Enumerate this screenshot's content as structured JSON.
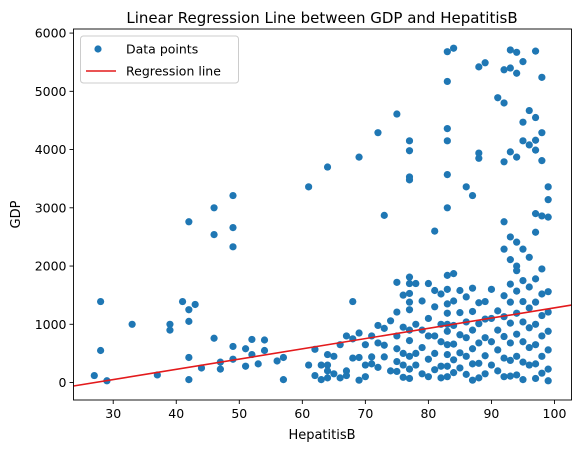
{
  "chart_data": {
    "type": "scatter",
    "title": "Linear Regression Line between GDP and HepatitisB",
    "xlabel": "HepatitisB",
    "ylabel": "GDP",
    "xlim": [
      23.7,
      102.7
    ],
    "ylim": [
      -300,
      6070
    ],
    "xticks": [
      30,
      40,
      50,
      60,
      70,
      80,
      90,
      100
    ],
    "yticks": [
      0,
      1000,
      2000,
      3000,
      4000,
      5000,
      6000
    ],
    "legend_position": "upper-left",
    "grid": false,
    "series": [
      {
        "name": "Data points",
        "kind": "scatter",
        "color": "#1f77b4",
        "points": [
          [
            27,
            120
          ],
          [
            28,
            1390
          ],
          [
            28,
            550
          ],
          [
            29,
            30
          ],
          [
            33,
            1000
          ],
          [
            37,
            130
          ],
          [
            39,
            1000
          ],
          [
            39,
            900
          ],
          [
            41,
            1390
          ],
          [
            42,
            2760
          ],
          [
            42,
            1250
          ],
          [
            42,
            1050
          ],
          [
            42,
            430
          ],
          [
            42,
            50
          ],
          [
            43,
            1340
          ],
          [
            44,
            250
          ],
          [
            46,
            3000
          ],
          [
            46,
            2540
          ],
          [
            46,
            760
          ],
          [
            47,
            350
          ],
          [
            47,
            230
          ],
          [
            49,
            3210
          ],
          [
            49,
            2660
          ],
          [
            49,
            2330
          ],
          [
            49,
            620
          ],
          [
            49,
            400
          ],
          [
            51,
            580
          ],
          [
            51,
            280
          ],
          [
            52,
            740
          ],
          [
            52,
            480
          ],
          [
            53,
            320
          ],
          [
            54,
            730
          ],
          [
            54,
            550
          ],
          [
            56,
            370
          ],
          [
            57,
            430
          ],
          [
            57,
            50
          ],
          [
            61,
            3360
          ],
          [
            61,
            300
          ],
          [
            62,
            570
          ],
          [
            62,
            120
          ],
          [
            63,
            300
          ],
          [
            63,
            50
          ],
          [
            64,
            3700
          ],
          [
            64,
            480
          ],
          [
            64,
            300
          ],
          [
            64,
            200
          ],
          [
            64,
            80
          ],
          [
            65,
            450
          ],
          [
            65,
            150
          ],
          [
            66,
            650
          ],
          [
            66,
            80
          ],
          [
            67,
            800
          ],
          [
            67,
            200
          ],
          [
            67,
            120
          ],
          [
            68,
            1390
          ],
          [
            68,
            750
          ],
          [
            68,
            420
          ],
          [
            69,
            3870
          ],
          [
            69,
            850
          ],
          [
            69,
            430
          ],
          [
            69,
            40
          ],
          [
            70,
            650
          ],
          [
            70,
            300
          ],
          [
            70,
            100
          ],
          [
            71,
            800
          ],
          [
            71,
            440
          ],
          [
            71,
            320
          ],
          [
            72,
            4290
          ],
          [
            72,
            980
          ],
          [
            72,
            680
          ],
          [
            72,
            260
          ],
          [
            73,
            2870
          ],
          [
            73,
            930
          ],
          [
            73,
            640
          ],
          [
            73,
            440
          ],
          [
            74,
            1060
          ],
          [
            74,
            200
          ],
          [
            75,
            4610
          ],
          [
            75,
            1720
          ],
          [
            75,
            1210
          ],
          [
            75,
            800
          ],
          [
            75,
            580
          ],
          [
            75,
            360
          ],
          [
            75,
            190
          ],
          [
            76,
            1500
          ],
          [
            76,
            950
          ],
          [
            76,
            500
          ],
          [
            76,
            300
          ],
          [
            76,
            90
          ],
          [
            77,
            4150
          ],
          [
            77,
            3980
          ],
          [
            77,
            3530
          ],
          [
            77,
            3480
          ],
          [
            77,
            1810
          ],
          [
            77,
            1700
          ],
          [
            77,
            1530
          ],
          [
            77,
            1380
          ],
          [
            77,
            1250
          ],
          [
            77,
            900
          ],
          [
            77,
            720
          ],
          [
            77,
            450
          ],
          [
            77,
            230
          ],
          [
            77,
            70
          ],
          [
            78,
            1700
          ],
          [
            78,
            1000
          ],
          [
            78,
            500
          ],
          [
            78,
            300
          ],
          [
            79,
            1400
          ],
          [
            79,
            900
          ],
          [
            79,
            600
          ],
          [
            79,
            150
          ],
          [
            80,
            1700
          ],
          [
            80,
            1100
          ],
          [
            80,
            800
          ],
          [
            80,
            400
          ],
          [
            80,
            100
          ],
          [
            81,
            2600
          ],
          [
            81,
            1580
          ],
          [
            81,
            1300
          ],
          [
            81,
            800
          ],
          [
            81,
            500
          ],
          [
            81,
            220
          ],
          [
            82,
            1520
          ],
          [
            82,
            1000
          ],
          [
            82,
            700
          ],
          [
            82,
            280
          ],
          [
            82,
            80
          ],
          [
            83,
            5680
          ],
          [
            83,
            5170
          ],
          [
            83,
            4360
          ],
          [
            83,
            4150
          ],
          [
            83,
            3570
          ],
          [
            83,
            3000
          ],
          [
            83,
            1840
          ],
          [
            83,
            1600
          ],
          [
            83,
            1350
          ],
          [
            83,
            1190
          ],
          [
            83,
            1000
          ],
          [
            83,
            880
          ],
          [
            83,
            650
          ],
          [
            83,
            480
          ],
          [
            83,
            280
          ],
          [
            83,
            100
          ],
          [
            84,
            5740
          ],
          [
            84,
            1870
          ],
          [
            84,
            1400
          ],
          [
            84,
            980
          ],
          [
            84,
            660
          ],
          [
            84,
            390
          ],
          [
            84,
            170
          ],
          [
            85,
            1580
          ],
          [
            85,
            1200
          ],
          [
            85,
            820
          ],
          [
            85,
            510
          ],
          [
            85,
            250
          ],
          [
            86,
            3360
          ],
          [
            86,
            1470
          ],
          [
            86,
            1040
          ],
          [
            86,
            770
          ],
          [
            86,
            450
          ],
          [
            86,
            140
          ],
          [
            87,
            3210
          ],
          [
            87,
            1620
          ],
          [
            87,
            1220
          ],
          [
            87,
            900
          ],
          [
            87,
            580
          ],
          [
            87,
            320
          ],
          [
            87,
            40
          ],
          [
            88,
            5420
          ],
          [
            88,
            3940
          ],
          [
            88,
            3850
          ],
          [
            88,
            1370
          ],
          [
            88,
            1010
          ],
          [
            88,
            680
          ],
          [
            88,
            330
          ],
          [
            88,
            80
          ],
          [
            89,
            5490
          ],
          [
            89,
            1390
          ],
          [
            89,
            1090
          ],
          [
            89,
            770
          ],
          [
            89,
            460
          ],
          [
            89,
            150
          ],
          [
            90,
            1600
          ],
          [
            90,
            1100
          ],
          [
            90,
            700
          ],
          [
            90,
            300
          ],
          [
            91,
            4890
          ],
          [
            91,
            1230
          ],
          [
            91,
            900
          ],
          [
            91,
            560
          ],
          [
            91,
            200
          ],
          [
            92,
            5370
          ],
          [
            92,
            4800
          ],
          [
            92,
            3790
          ],
          [
            92,
            2760
          ],
          [
            92,
            2290
          ],
          [
            92,
            1490
          ],
          [
            92,
            1130
          ],
          [
            92,
            790
          ],
          [
            92,
            420
          ],
          [
            92,
            100
          ],
          [
            93,
            5710
          ],
          [
            93,
            5400
          ],
          [
            93,
            3960
          ],
          [
            93,
            2500
          ],
          [
            93,
            2110
          ],
          [
            93,
            1690
          ],
          [
            93,
            1380
          ],
          [
            93,
            1020
          ],
          [
            93,
            680
          ],
          [
            93,
            380
          ],
          [
            93,
            110
          ],
          [
            94,
            5670
          ],
          [
            94,
            5310
          ],
          [
            94,
            3870
          ],
          [
            94,
            2410
          ],
          [
            94,
            2000
          ],
          [
            94,
            1920
          ],
          [
            94,
            1570
          ],
          [
            94,
            1190
          ],
          [
            94,
            830
          ],
          [
            94,
            450
          ],
          [
            94,
            130
          ],
          [
            95,
            5510
          ],
          [
            95,
            4470
          ],
          [
            95,
            4150
          ],
          [
            95,
            2290
          ],
          [
            95,
            1750
          ],
          [
            95,
            1390
          ],
          [
            95,
            1040
          ],
          [
            95,
            700
          ],
          [
            95,
            350
          ],
          [
            95,
            50
          ],
          [
            96,
            4670
          ],
          [
            96,
            4080
          ],
          [
            96,
            2150
          ],
          [
            96,
            1640
          ],
          [
            96,
            1280
          ],
          [
            96,
            940
          ],
          [
            96,
            600
          ],
          [
            96,
            300
          ],
          [
            97,
            5690
          ],
          [
            97,
            4550
          ],
          [
            97,
            4160
          ],
          [
            97,
            3990
          ],
          [
            97,
            2900
          ],
          [
            97,
            2580
          ],
          [
            97,
            1780
          ],
          [
            97,
            1380
          ],
          [
            97,
            1000
          ],
          [
            97,
            650
          ],
          [
            97,
            320
          ],
          [
            97,
            70
          ],
          [
            98,
            5240
          ],
          [
            98,
            4290
          ],
          [
            98,
            3810
          ],
          [
            98,
            2860
          ],
          [
            98,
            1950
          ],
          [
            98,
            1520
          ],
          [
            98,
            1150
          ],
          [
            98,
            800
          ],
          [
            98,
            450
          ],
          [
            98,
            160
          ],
          [
            99,
            3360
          ],
          [
            99,
            3140
          ],
          [
            99,
            2840
          ],
          [
            99,
            1560
          ],
          [
            99,
            1210
          ],
          [
            99,
            880
          ],
          [
            99,
            560
          ],
          [
            99,
            230
          ],
          [
            99,
            30
          ]
        ]
      },
      {
        "name": "Regression line",
        "kind": "line",
        "color": "#e31a1c",
        "points": [
          [
            23.7,
            -60
          ],
          [
            102.7,
            1330
          ]
        ]
      }
    ]
  }
}
